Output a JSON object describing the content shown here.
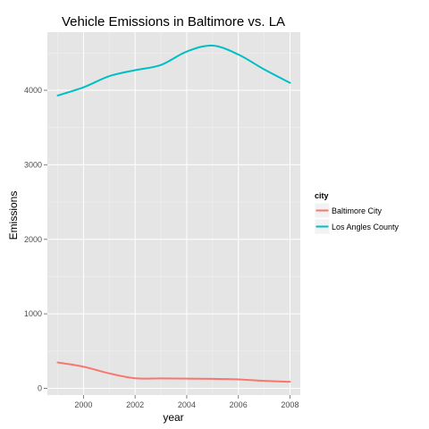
{
  "chart_data": {
    "type": "line",
    "title": "Vehicle Emissions in Baltimore vs. LA",
    "xlabel": "year",
    "ylabel": "Emissions",
    "xlim": [
      1998.6,
      2008.4
    ],
    "ylim": [
      -90,
      4780
    ],
    "x_ticks": [
      2000,
      2002,
      2004,
      2006,
      2008
    ],
    "y_ticks": [
      0,
      1000,
      2000,
      3000,
      4000
    ],
    "grid": true,
    "legend": {
      "title": "city",
      "placement": "right"
    },
    "colors": {
      "panel": "#E5E5E5",
      "grid_major": "#FFFFFF",
      "grid_minor": "#F2F2F2"
    },
    "series": [
      {
        "name": "Baltimore City",
        "color": "#F8766D",
        "x": [
          1999,
          2000,
          2001,
          2002,
          2003,
          2004,
          2005,
          2006,
          2007,
          2008
        ],
        "y": [
          347,
          290,
          200,
          135,
          133,
          130,
          127,
          120,
          100,
          88
        ]
      },
      {
        "name": "Los Angles County",
        "color": "#00BFC4",
        "x": [
          1999,
          2000,
          2001,
          2002,
          2003,
          2004,
          2005,
          2006,
          2007,
          2008
        ],
        "y": [
          3930,
          4040,
          4190,
          4270,
          4340,
          4520,
          4600,
          4480,
          4280,
          4100
        ]
      }
    ]
  }
}
